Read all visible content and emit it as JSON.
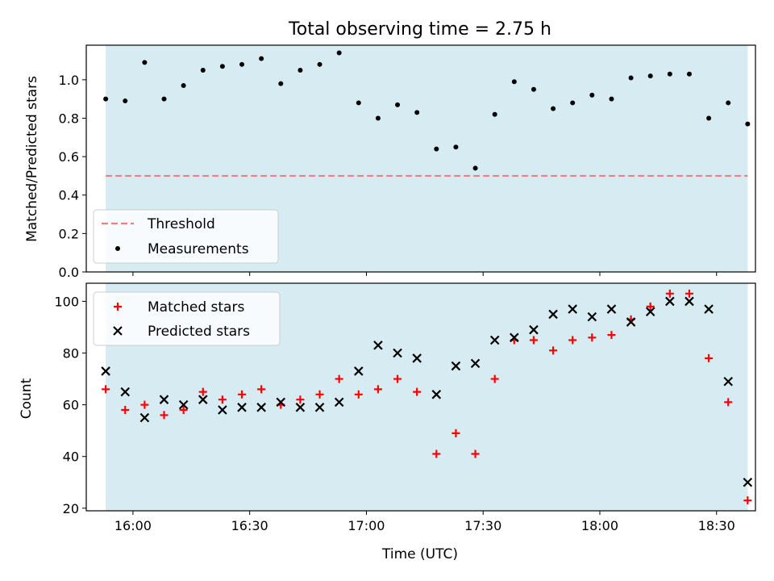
{
  "title": "Total observing time = 2.75 h",
  "colors": {
    "shade": "#add8e6",
    "threshold": "#f08080",
    "measurement": "#000000",
    "matched": "#ff0000",
    "predicted": "#000000"
  },
  "chart_data": [
    {
      "type": "scatter",
      "title": "Total observing time = 2.75 h",
      "ylabel": "Matched/Predicted stars",
      "xlabel": "",
      "xlim": [
        "15:48",
        "18:40"
      ],
      "ylim": [
        0,
        1.18
      ],
      "yticks": [
        "0.0",
        "0.2",
        "0.4",
        "0.6",
        "0.8",
        "1.0"
      ],
      "shaded_x_range": [
        "15:53",
        "18:38"
      ],
      "threshold": 0.5,
      "legend": {
        "placement": "lower-left",
        "entries": [
          "Threshold",
          "Measurements"
        ]
      },
      "x": [
        "15:53",
        "15:58",
        "16:03",
        "16:08",
        "16:13",
        "16:18",
        "16:23",
        "16:28",
        "16:33",
        "16:38",
        "16:43",
        "16:48",
        "16:53",
        "16:58",
        "17:03",
        "17:08",
        "17:13",
        "17:18",
        "17:23",
        "17:28",
        "17:33",
        "17:38",
        "17:43",
        "17:48",
        "17:53",
        "17:58",
        "18:03",
        "18:08",
        "18:13",
        "18:18",
        "18:23",
        "18:28",
        "18:33",
        "18:38"
      ],
      "series": [
        {
          "name": "Measurements",
          "values": [
            0.9,
            0.89,
            1.09,
            0.9,
            0.97,
            1.05,
            1.07,
            1.08,
            1.11,
            0.98,
            1.05,
            1.08,
            1.14,
            0.88,
            0.8,
            0.87,
            0.83,
            0.64,
            0.65,
            0.54,
            0.82,
            0.99,
            0.95,
            0.85,
            0.88,
            0.92,
            0.9,
            1.01,
            1.02,
            1.03,
            1.03,
            0.8,
            0.88,
            0.77
          ]
        }
      ]
    },
    {
      "type": "scatter",
      "ylabel": "Count",
      "xlabel": "Time (UTC)",
      "xlim": [
        "15:48",
        "18:40"
      ],
      "ylim": [
        19,
        107
      ],
      "yticks": [
        "20",
        "40",
        "60",
        "80",
        "100"
      ],
      "xticks": [
        "16:00",
        "16:30",
        "17:00",
        "17:30",
        "18:00",
        "18:30"
      ],
      "shaded_x_range": [
        "15:53",
        "18:38"
      ],
      "legend": {
        "placement": "upper-left",
        "entries": [
          "Matched stars",
          "Predicted stars"
        ]
      },
      "x": [
        "15:53",
        "15:58",
        "16:03",
        "16:08",
        "16:13",
        "16:18",
        "16:23",
        "16:28",
        "16:33",
        "16:38",
        "16:43",
        "16:48",
        "16:53",
        "16:58",
        "17:03",
        "17:08",
        "17:13",
        "17:18",
        "17:23",
        "17:28",
        "17:33",
        "17:38",
        "17:43",
        "17:48",
        "17:53",
        "17:58",
        "18:03",
        "18:08",
        "18:13",
        "18:18",
        "18:23",
        "18:28",
        "18:33",
        "18:38"
      ],
      "series": [
        {
          "name": "Matched stars",
          "values": [
            66,
            58,
            60,
            56,
            58,
            65,
            62,
            64,
            66,
            60,
            62,
            64,
            70,
            64,
            66,
            70,
            65,
            41,
            49,
            41,
            70,
            85,
            85,
            81,
            85,
            86,
            87,
            93,
            98,
            103,
            103,
            78,
            61,
            23
          ]
        },
        {
          "name": "Predicted stars",
          "values": [
            73,
            65,
            55,
            62,
            60,
            62,
            58,
            59,
            59,
            61,
            59,
            59,
            61,
            73,
            83,
            80,
            78,
            64,
            75,
            76,
            85,
            86,
            89,
            95,
            97,
            94,
            97,
            92,
            96,
            100,
            100,
            97,
            69,
            30
          ]
        }
      ]
    }
  ]
}
